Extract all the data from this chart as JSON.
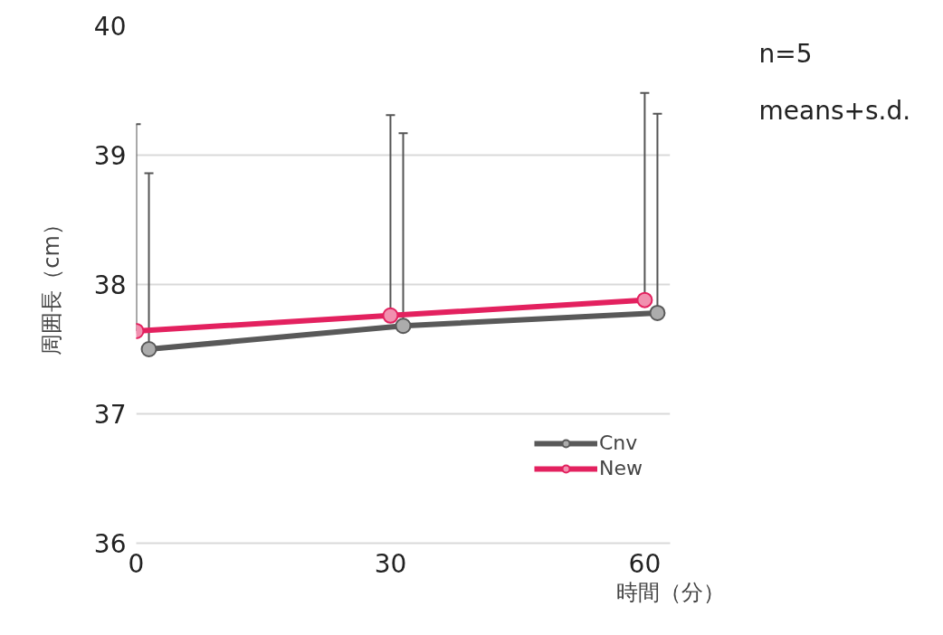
{
  "chart_data": {
    "type": "line",
    "xlabel": "時間（分）",
    "ylabel": "周囲長（cm）",
    "xlim": [
      0,
      63
    ],
    "xticks": [
      0,
      30,
      60
    ],
    "ylim": [
      36,
      40
    ],
    "yticks": [
      36,
      37,
      38,
      39,
      40
    ],
    "series": [
      {
        "name": "Cnv",
        "color": "#595959",
        "x": [
          1.5,
          31.5,
          61.5
        ],
        "values": [
          37.5,
          37.68,
          37.78
        ],
        "errors": [
          [
            37.5,
            38.86
          ],
          [
            37.68,
            39.17
          ],
          [
            37.78,
            39.32
          ]
        ]
      },
      {
        "name": "New",
        "color": "#e3215f",
        "x": [
          0,
          30,
          60
        ],
        "values": [
          37.64,
          37.76,
          37.88
        ],
        "errors": [
          [
            37.64,
            39.24
          ],
          [
            37.76,
            39.31
          ],
          [
            37.88,
            39.48
          ]
        ]
      }
    ],
    "annotations": [
      "n=5",
      "means+s.d."
    ],
    "grid": "y",
    "legend": "bottom right",
    "marker": "circle",
    "line_style": "solid"
  }
}
